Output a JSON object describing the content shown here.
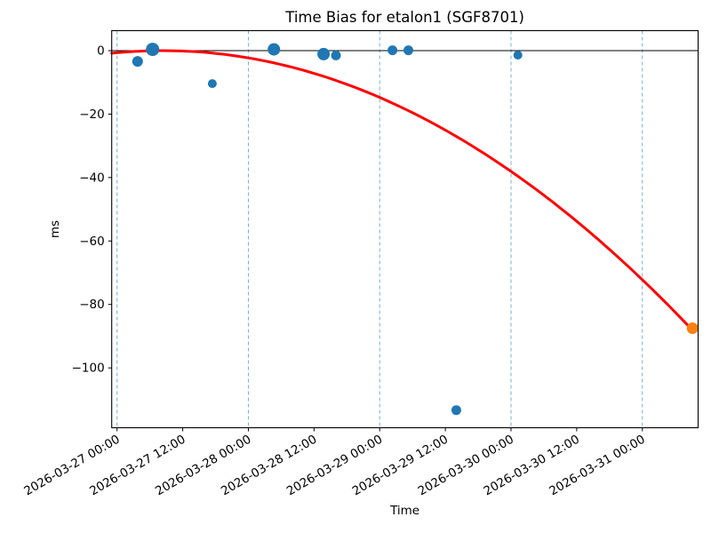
{
  "chart_data": {
    "type": "scatter",
    "title": "Time Bias for etalon1 (SGF8701)",
    "xlabel": "Time",
    "ylabel": "ms",
    "x_ticks": [
      "2026-03-27 00:00",
      "2026-03-27 12:00",
      "2026-03-28 00:00",
      "2026-03-28 12:00",
      "2026-03-29 00:00",
      "2026-03-29 12:00",
      "2026-03-30 00:00",
      "2026-03-30 12:00",
      "2026-03-31 00:00"
    ],
    "y_ticks": [
      {
        "label": "0",
        "value": 0
      },
      {
        "label": "−20",
        "value": -20
      },
      {
        "label": "−40",
        "value": -40
      },
      {
        "label": "−60",
        "value": -60
      },
      {
        "label": "−80",
        "value": -80
      },
      {
        "label": "−100",
        "value": -100
      }
    ],
    "gridline_times": [
      "2026-03-27 00:00",
      "2026-03-28 00:00",
      "2026-03-29 00:00",
      "2026-03-30 00:00",
      "2026-03-31 00:00"
    ],
    "ylim": [
      -118.8,
      6.6
    ],
    "grid_on": true,
    "legend": "none",
    "series": [
      {
        "marker_color": "#1f77b4",
        "points": [
          {
            "time": "2026-03-27 03:45",
            "ms": -3.4,
            "r": 6
          },
          {
            "time": "2026-03-27 06:30",
            "ms": 0.4,
            "r": 7.5
          },
          {
            "time": "2026-03-27 17:25",
            "ms": -10.4,
            "r": 5
          },
          {
            "time": "2026-03-28 04:40",
            "ms": 0.4,
            "r": 7
          },
          {
            "time": "2026-03-28 13:45",
            "ms": -1.1,
            "r": 7
          },
          {
            "time": "2026-03-28 16:00",
            "ms": -1.5,
            "r": 5.5
          },
          {
            "time": "2026-03-29 02:20",
            "ms": 0.1,
            "r": 5.5
          },
          {
            "time": "2026-03-29 05:15",
            "ms": 0.1,
            "r": 5.5
          },
          {
            "time": "2026-03-29 14:00",
            "ms": -113.3,
            "r": 5.5
          },
          {
            "time": "2026-03-30 01:15",
            "ms": -1.4,
            "r": 5
          }
        ]
      },
      {
        "marker_color": "#ff7f0e",
        "points": [
          {
            "time": "2026-03-31 09:10",
            "ms": -87.5,
            "r": 6.5
          }
        ]
      }
    ],
    "fit_curve": {
      "shape": "quadratic",
      "coeff_ms_per_day2": -5.42,
      "vertex_days_after_first_tick": 0.35,
      "start_days": -0.04,
      "end_days": 4.381,
      "color": "#ff0000",
      "line_width": 3
    },
    "zero_line_color": "#000000",
    "grid_color": "#79add2",
    "axis_color": "#000000",
    "background_color": "#ffffff"
  }
}
